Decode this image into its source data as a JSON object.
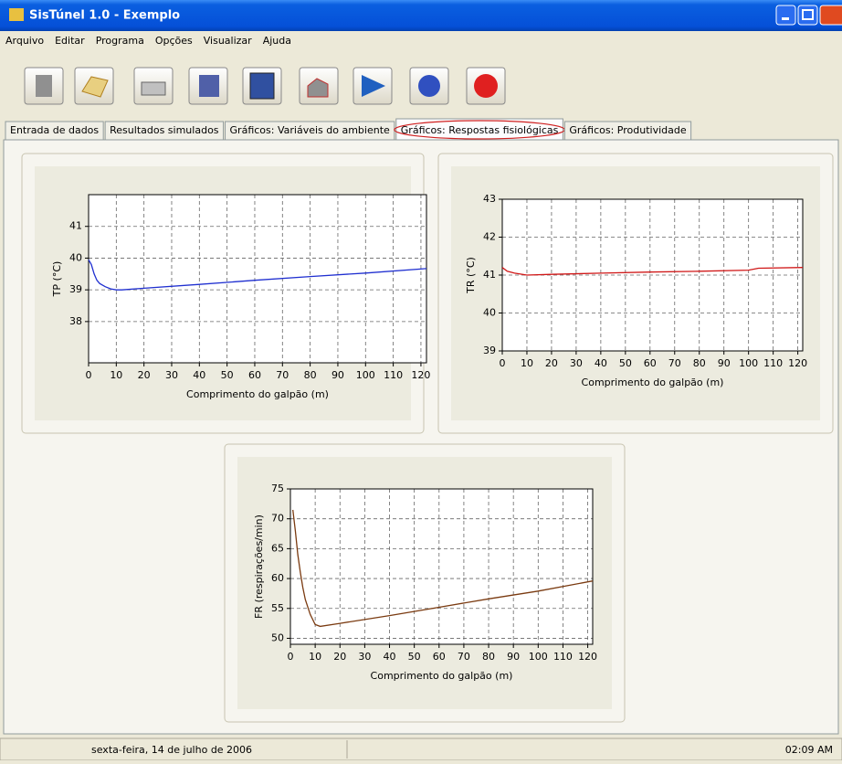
{
  "window": {
    "title": "SisTúnel 1.0 - Exemplo"
  },
  "menu": [
    "Arquivo",
    "Editar",
    "Programa",
    "Opções",
    "Visualizar",
    "Ajuda"
  ],
  "tabs": [
    "Entrada de dados",
    "Resultados simulados",
    "Gráficos: Variáveis do ambiente",
    "Gráficos: Respostas fisiológicas",
    "Gráficos: Produtividade"
  ],
  "active_tab": 3,
  "chart_data": [
    {
      "type": "line",
      "x_label": "Comprimento do galpão (m)",
      "y_label": "TP (°C)",
      "x": [
        0,
        1,
        2,
        3,
        4,
        6,
        8,
        10,
        12,
        20,
        40,
        60,
        80,
        100,
        122
      ],
      "values": [
        39.95,
        39.8,
        39.5,
        39.3,
        39.2,
        39.1,
        39.03,
        39.0,
        39.0,
        39.05,
        39.17,
        39.3,
        39.42,
        39.53,
        39.67
      ],
      "color": "#1f2fd0",
      "xlim": [
        0,
        122
      ],
      "ylim": [
        36.7,
        42
      ],
      "xticks": [
        0,
        10,
        20,
        30,
        40,
        50,
        60,
        70,
        80,
        90,
        100,
        110,
        120
      ],
      "yticks": [
        38,
        39,
        40,
        41
      ],
      "grid": true
    },
    {
      "type": "line",
      "x_label": "Comprimento do galpão (m)",
      "y_label": "TR (°C)",
      "x": [
        0,
        2,
        5,
        10,
        20,
        40,
        60,
        80,
        100,
        104,
        122
      ],
      "values": [
        41.2,
        41.1,
        41.05,
        41.0,
        41.02,
        41.05,
        41.08,
        41.1,
        41.13,
        41.18,
        41.2
      ],
      "color": "#d01818",
      "xlim": [
        0,
        122
      ],
      "ylim": [
        39,
        43
      ],
      "xticks": [
        0,
        10,
        20,
        30,
        40,
        50,
        60,
        70,
        80,
        90,
        100,
        110,
        120
      ],
      "yticks": [
        39,
        40,
        41,
        42,
        43
      ],
      "grid": true
    },
    {
      "type": "line",
      "x_label": "Comprimento do galpão (m)",
      "y_label": "FR (respirações/min)",
      "x": [
        1,
        2,
        3,
        4,
        5,
        6,
        8,
        10,
        12,
        20,
        40,
        60,
        80,
        100,
        122
      ],
      "values": [
        71.5,
        68,
        64,
        61,
        58.5,
        56.5,
        54,
        52.3,
        52,
        52.5,
        53.8,
        55.2,
        56.6,
        57.9,
        59.6
      ],
      "color": "#7a3a10",
      "xlim": [
        0,
        122
      ],
      "ylim": [
        49,
        75
      ],
      "xticks": [
        0,
        10,
        20,
        30,
        40,
        50,
        60,
        70,
        80,
        90,
        100,
        110,
        120
      ],
      "yticks": [
        50,
        55,
        60,
        65,
        70,
        75
      ],
      "grid": true
    }
  ],
  "status": {
    "date": "sexta-feira, 14 de julho de 2006",
    "time": "02:09 AM"
  }
}
